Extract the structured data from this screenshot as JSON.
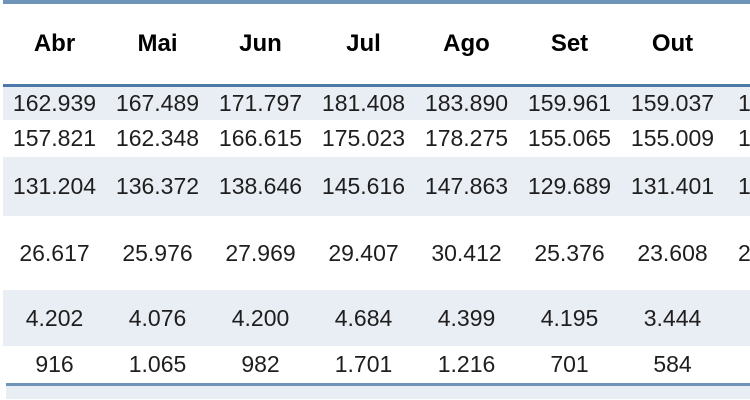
{
  "table": {
    "columns": [
      "Abr",
      "Mai",
      "Jun",
      "Jul",
      "Ago",
      "Set",
      "Out",
      ""
    ],
    "rows": [
      {
        "cells": [
          "162.939",
          "167.489",
          "171.797",
          "181.408",
          "183.890",
          "159.961",
          "159.037",
          "1"
        ]
      },
      {
        "cells": [
          "157.821",
          "162.348",
          "166.615",
          "175.023",
          "178.275",
          "155.065",
          "155.009",
          "1"
        ]
      },
      {
        "cells": [
          "131.204",
          "136.372",
          "138.646",
          "145.616",
          "147.863",
          "129.689",
          "131.401",
          "1"
        ]
      },
      {
        "cells": [
          "26.617",
          "25.976",
          "27.969",
          "29.407",
          "30.412",
          "25.376",
          "23.608",
          "2"
        ]
      },
      {
        "cells": [
          "4.202",
          "4.076",
          "4.200",
          "4.684",
          "4.399",
          "4.195",
          "3.444",
          ""
        ]
      },
      {
        "cells": [
          "916",
          "1.065",
          "982",
          "1.701",
          "1.216",
          "701",
          "584",
          ""
        ]
      }
    ]
  },
  "colors": {
    "stripe": "#e9edf4",
    "rule_dark": "#4c79a7",
    "rule_light": "#6e94b8",
    "text": "#1e1e1e"
  }
}
